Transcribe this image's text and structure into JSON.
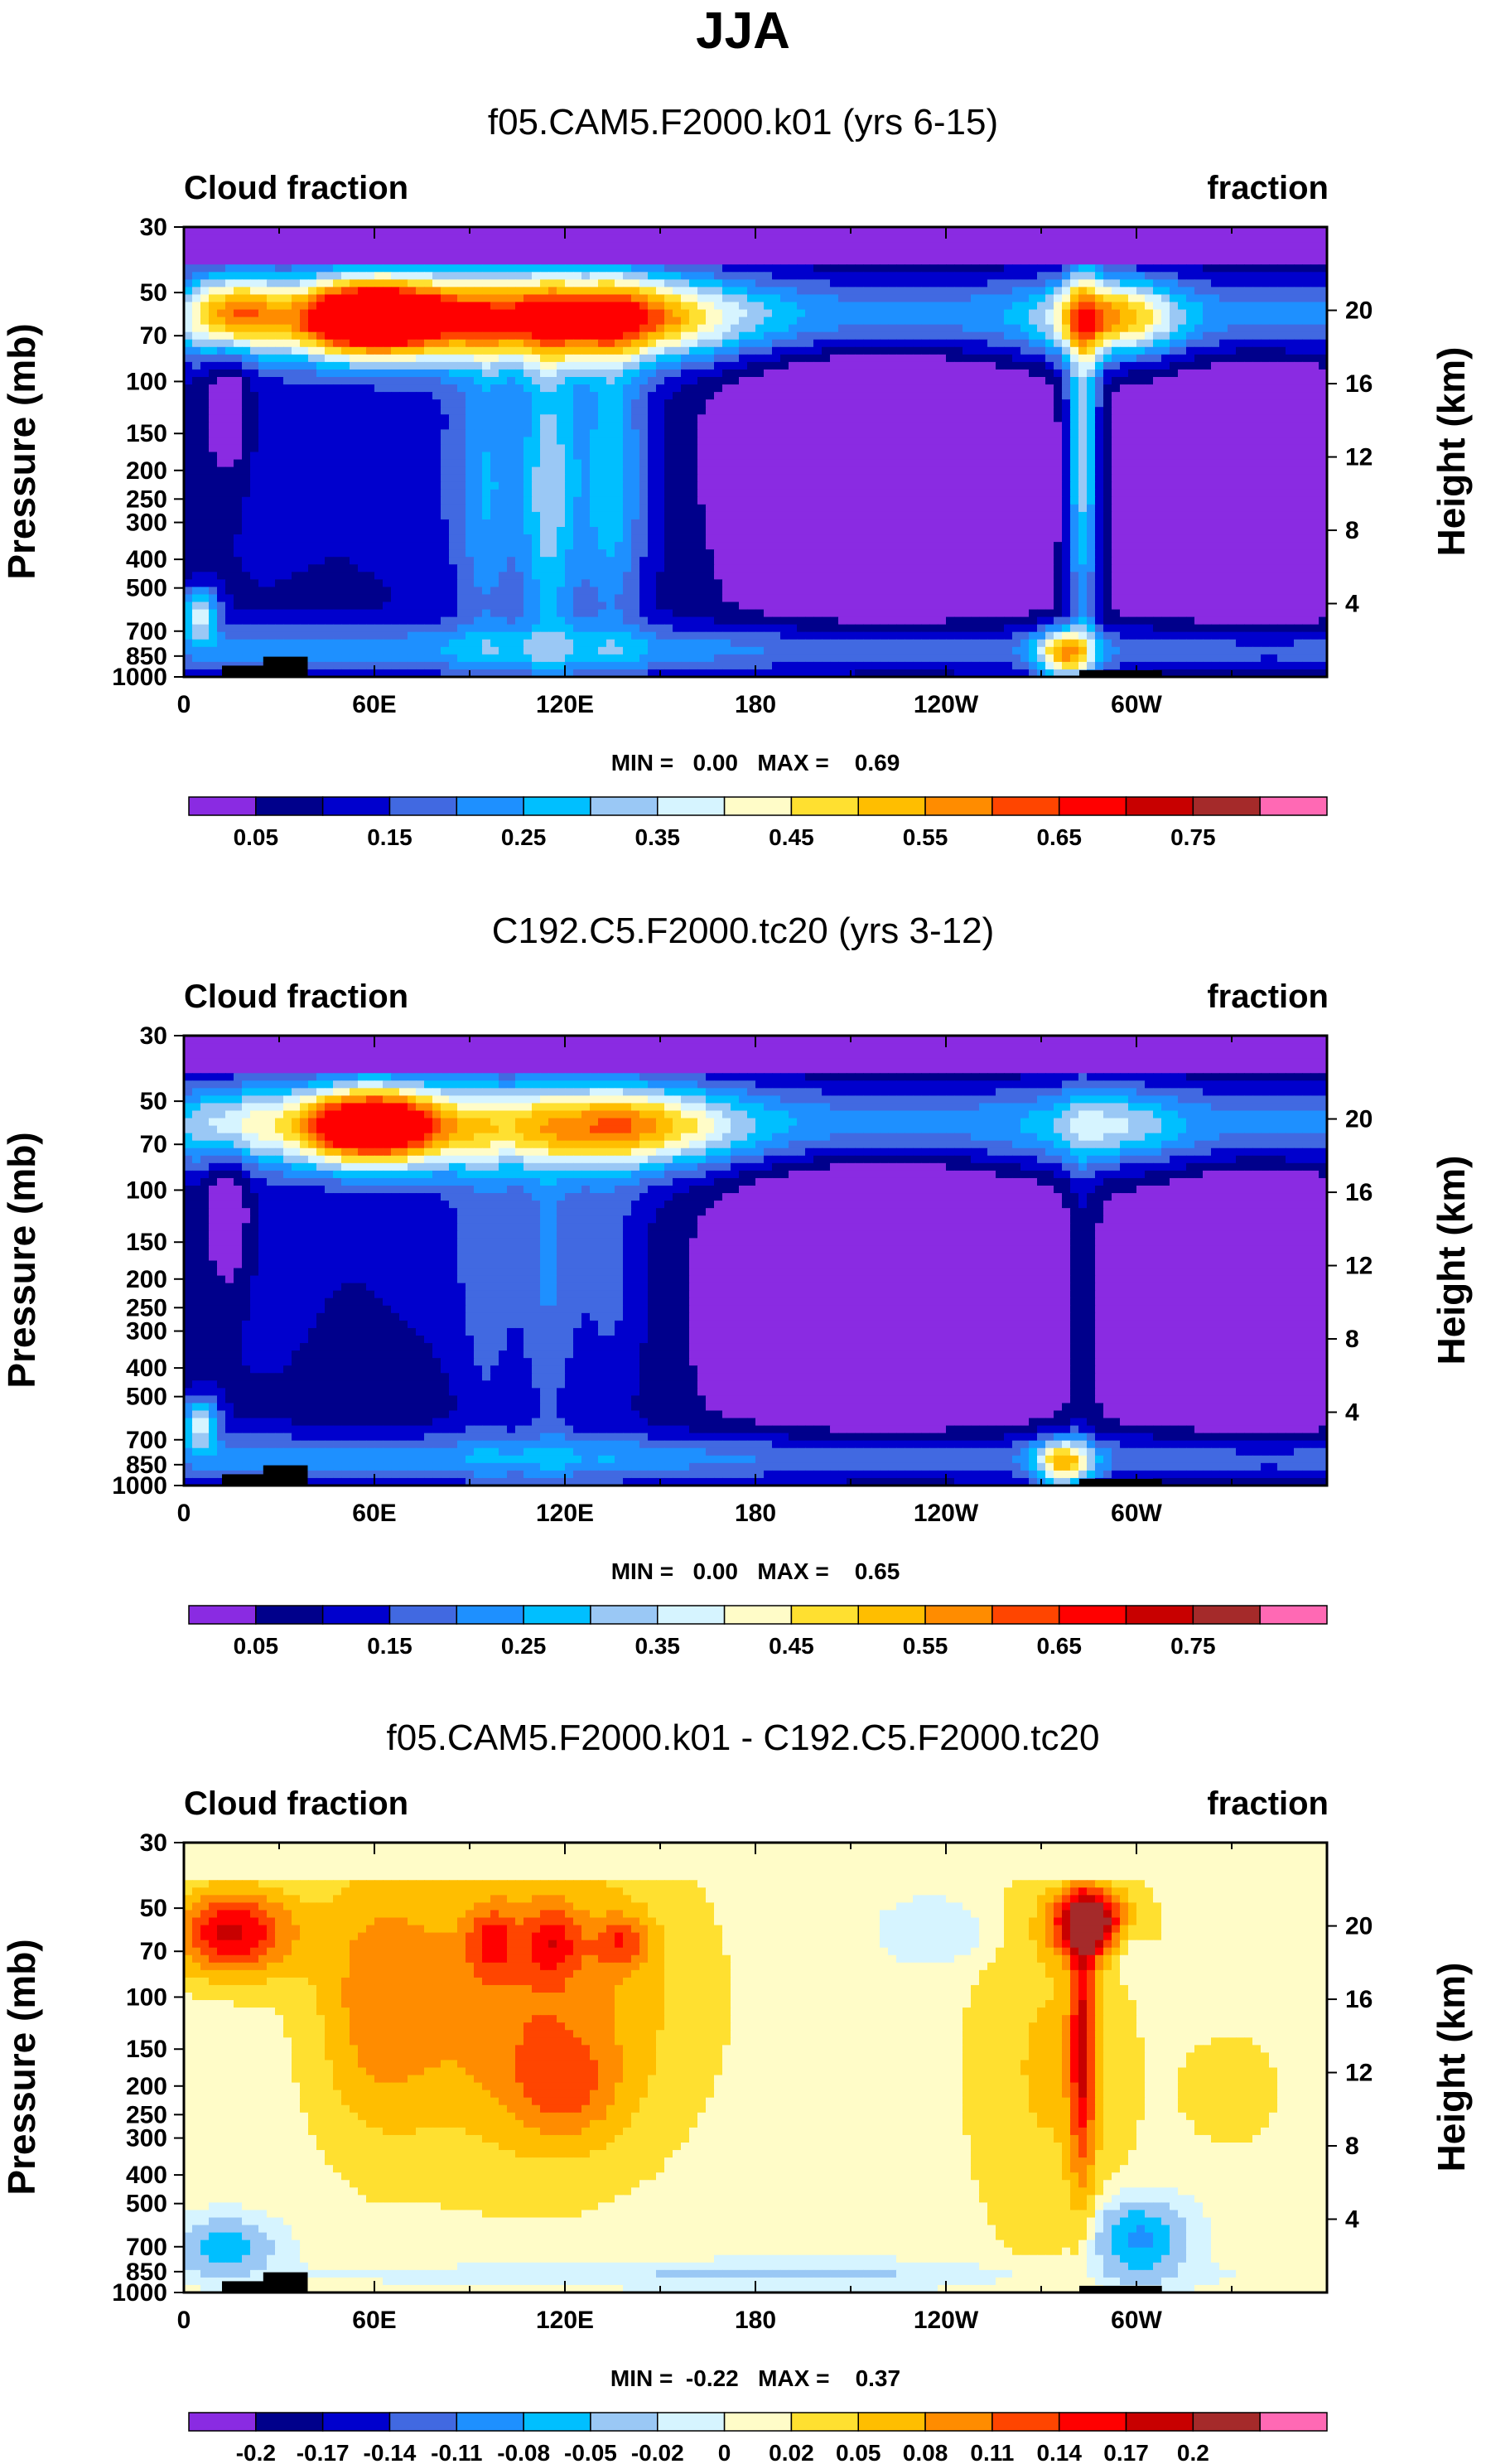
{
  "chart_data": {
    "type": "heatmap",
    "title": "JJA",
    "panels": [
      {
        "title": "f05.CAM5.F2000.k01 (yrs 6-15)",
        "left_label": "Cloud fraction",
        "right_label": "fraction",
        "ylabel": "Pressure (mb)",
        "ylabel_right": "Height (km)",
        "x_ticks": [
          "0",
          "60E",
          "120E",
          "180",
          "120W",
          "60W"
        ],
        "y_ticks": [
          "30",
          "50",
          "70",
          "100",
          "150",
          "200",
          "250",
          "300",
          "400",
          "500",
          "700",
          "850",
          "1000"
        ],
        "height_ticks": [
          "20",
          "16",
          "12",
          "8",
          "4"
        ],
        "min_max_text": "MIN =   0.00   MAX =    0.69",
        "colorbar_labels": [
          "0.05",
          "0.15",
          "0.25",
          "0.35",
          "0.45",
          "0.55",
          "0.65",
          "0.75"
        ],
        "field": "cloud",
        "variant": 1
      },
      {
        "title": "C192.C5.F2000.tc20 (yrs 3-12)",
        "left_label": "Cloud fraction",
        "right_label": "fraction",
        "ylabel": "Pressure (mb)",
        "ylabel_right": "Height (km)",
        "x_ticks": [
          "0",
          "60E",
          "120E",
          "180",
          "120W",
          "60W"
        ],
        "y_ticks": [
          "30",
          "50",
          "70",
          "100",
          "150",
          "200",
          "250",
          "300",
          "400",
          "500",
          "700",
          "850",
          "1000"
        ],
        "height_ticks": [
          "20",
          "16",
          "12",
          "8",
          "4"
        ],
        "min_max_text": "MIN =   0.00   MAX =    0.65",
        "colorbar_labels": [
          "0.05",
          "0.15",
          "0.25",
          "0.35",
          "0.45",
          "0.55",
          "0.65",
          "0.75"
        ],
        "field": "cloud",
        "variant": 2
      },
      {
        "title": "f05.CAM5.F2000.k01 - C192.C5.F2000.tc20",
        "left_label": "Cloud fraction",
        "right_label": "fraction",
        "ylabel": "Pressure (mb)",
        "ylabel_right": "Height (km)",
        "x_ticks": [
          "0",
          "60E",
          "120E",
          "180",
          "120W",
          "60W"
        ],
        "y_ticks": [
          "30",
          "50",
          "70",
          "100",
          "150",
          "200",
          "250",
          "300",
          "400",
          "500",
          "700",
          "850",
          "1000"
        ],
        "height_ticks": [
          "20",
          "16",
          "12",
          "8",
          "4"
        ],
        "min_max_text": "MIN =  -0.22   MAX =    0.37",
        "colorbar_labels": [
          "-0.2",
          "-0.17",
          "-0.14",
          "-0.11",
          "-0.08",
          "-0.05",
          "-0.02",
          "0",
          "0.02",
          "0.05",
          "0.08",
          "0.11",
          "0.14",
          "0.17",
          "0.2"
        ],
        "field": "diff",
        "variant": 3
      }
    ],
    "x_range": [
      0,
      360
    ],
    "y_range_mb": [
      30,
      1000
    ],
    "cloud_levels": [
      0.05,
      0.1,
      0.15,
      0.2,
      0.25,
      0.3,
      0.35,
      0.4,
      0.45,
      0.5,
      0.55,
      0.6,
      0.65,
      0.7,
      0.75
    ],
    "cloud_colors": [
      "#8a2be2",
      "#00008b",
      "#0000cd",
      "#4169e1",
      "#1e90ff",
      "#00bfff",
      "#9ac8f5",
      "#d6f4ff",
      "#fffcc8",
      "#ffe030",
      "#ffbe00",
      "#ff8c00",
      "#ff4500",
      "#ff0000",
      "#c80000",
      "#a52a2a",
      "#ff69b4"
    ],
    "diff_levels": [
      -0.2,
      -0.17,
      -0.14,
      -0.11,
      -0.08,
      -0.05,
      -0.02,
      0,
      0.02,
      0.05,
      0.08,
      0.11,
      0.14,
      0.17,
      0.2
    ],
    "diff_colors": [
      "#8a2be2",
      "#00008b",
      "#0000cd",
      "#4169e1",
      "#1e90ff",
      "#00bfff",
      "#9ac8f5",
      "#d6f4ff",
      "#fffcc8",
      "#ffe030",
      "#ffbe00",
      "#ff8c00",
      "#ff4500",
      "#ff0000",
      "#c80000",
      "#a52a2a",
      "#ff69b4"
    ]
  }
}
